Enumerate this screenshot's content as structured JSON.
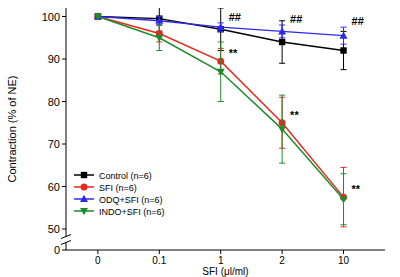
{
  "chart_data": {
    "type": "line",
    "x_label": "SFI (μl/ml)",
    "y_label": "Contraction (% of NE)",
    "categories": [
      "0",
      "0.1",
      "1",
      "2",
      "10"
    ],
    "ylim": [
      0,
      102
    ],
    "yticks": [
      0,
      50,
      60,
      70,
      80,
      90,
      100
    ],
    "legend": "lower left",
    "series": [
      {
        "name": "Control (n=6)",
        "color": "#000000",
        "marker": "square",
        "values": [
          100,
          99.5,
          97,
          94,
          92
        ],
        "errors": [
          0,
          3,
          5,
          5,
          4.5
        ],
        "annotations": [
          null,
          null,
          null,
          null,
          null
        ]
      },
      {
        "name": "SFI (n=6)",
        "color": "#e8281e",
        "marker": "circle",
        "values": [
          100,
          96,
          89.5,
          75,
          57.5
        ],
        "errors": [
          0,
          2,
          3,
          6,
          7
        ],
        "annotations": [
          null,
          null,
          "**",
          "**",
          "**"
        ]
      },
      {
        "name": "ODQ+SFI (n=6)",
        "color": "#2b2bf0",
        "marker": "triangle-up",
        "values": [
          100,
          99,
          97.5,
          96.5,
          95.5
        ],
        "errors": [
          0,
          1,
          1,
          1.5,
          2
        ],
        "annotations": [
          null,
          null,
          "##",
          "##",
          "##"
        ]
      },
      {
        "name": "INDO+SFI (n=6)",
        "color": "#1f8c2c",
        "marker": "triangle-down",
        "values": [
          100,
          95,
          87,
          73.5,
          57
        ],
        "errors": [
          0,
          3,
          7,
          8,
          6
        ],
        "annotations": [
          null,
          null,
          null,
          null,
          null
        ]
      }
    ]
  }
}
